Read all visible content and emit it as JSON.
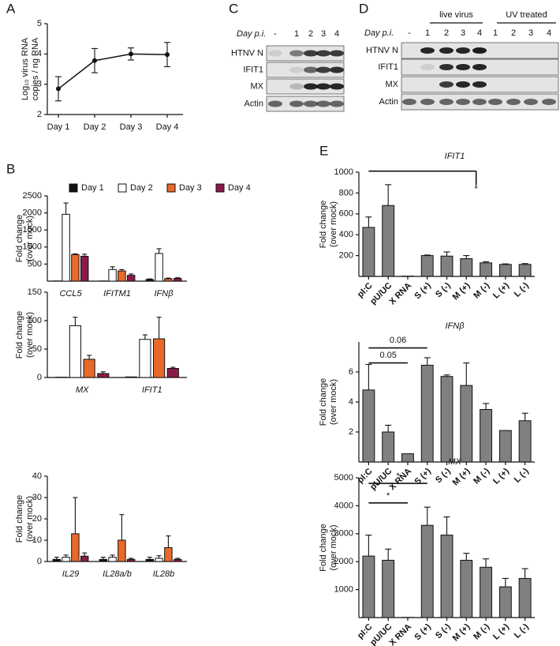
{
  "panel_labels": [
    "A",
    "B",
    "C",
    "D",
    "E"
  ],
  "blots": [
    {
      "label_day": "Day p.i.",
      "lanes": [
        "-",
        "1",
        "2",
        "3",
        "4"
      ],
      "rows": [
        "HTNV N",
        "IFIT1",
        "MX",
        "Actin"
      ]
    },
    {
      "label_day": "Day p.i.",
      "groups": [
        "live virus",
        "UV treated"
      ],
      "lanes": [
        "-",
        "1",
        "2",
        "3",
        "4",
        "1",
        "2",
        "3",
        "4"
      ],
      "rows": [
        "HTNV N",
        "IFIT1",
        "MX",
        "Actin"
      ]
    }
  ],
  "chart_data": [
    {
      "type": "line",
      "ylabel": [
        "Log₁₀ virus RNA",
        "copies / ng RNA"
      ],
      "categories": [
        "Day 1",
        "Day 2",
        "Day 3",
        "Day 4"
      ],
      "values": [
        2.85,
        3.78,
        4.0,
        3.98
      ],
      "errors": [
        0.4,
        0.4,
        0.2,
        0.4
      ],
      "color": "#111111",
      "ylim": [
        2,
        5
      ],
      "yticks": [
        2,
        3,
        4,
        5
      ]
    },
    {
      "type": "grouped-bar",
      "ylabel": [
        "Fold change",
        "(over mock)"
      ],
      "categories": [
        "CCL5",
        "IFITM1",
        "IFNβ"
      ],
      "series": [
        {
          "name": "Day 1",
          "color": "#111111",
          "values": [
            5,
            5,
            50
          ],
          "errors": [
            0,
            0,
            15
          ]
        },
        {
          "name": "Day 2",
          "color": "#ffffff",
          "values": [
            1960,
            340,
            810
          ],
          "errors": [
            330,
            80,
            140
          ]
        },
        {
          "name": "Day 3",
          "color": "#e8692a",
          "values": [
            780,
            300,
            70
          ],
          "errors": [
            20,
            40,
            20
          ]
        },
        {
          "name": "Day 4",
          "color": "#8b1a4a",
          "values": [
            730,
            170,
            80
          ],
          "errors": [
            60,
            40,
            20
          ]
        }
      ],
      "ylim": [
        0,
        2500
      ],
      "yticks": [
        500,
        1000,
        1500,
        2000,
        2500
      ]
    },
    {
      "type": "grouped-bar",
      "ylabel": [
        "Fold change",
        "(over mock)"
      ],
      "categories": [
        "MX",
        "IFIT1"
      ],
      "series": [
        {
          "color": "#111111",
          "values": [
            0.5,
            1
          ],
          "errors": [
            0,
            0
          ]
        },
        {
          "color": "#ffffff",
          "values": [
            91,
            67
          ],
          "errors": [
            15,
            8
          ]
        },
        {
          "color": "#e8692a",
          "values": [
            32,
            68
          ],
          "errors": [
            7,
            38
          ]
        },
        {
          "color": "#8b1a4a",
          "values": [
            7,
            16
          ],
          "errors": [
            3,
            2
          ]
        }
      ],
      "ylim": [
        0,
        150
      ],
      "yticks": [
        0,
        50,
        100,
        150
      ]
    },
    {
      "type": "grouped-bar",
      "ylabel": [
        "Fold change",
        "(over mock)"
      ],
      "categories": [
        "IL29",
        "IL28a/b",
        "IL28b"
      ],
      "series": [
        {
          "color": "#111111",
          "values": [
            1,
            1,
            1
          ],
          "errors": [
            1,
            1,
            1
          ]
        },
        {
          "color": "#ffffff",
          "values": [
            2,
            2,
            1.5
          ],
          "errors": [
            1,
            1,
            1.2
          ]
        },
        {
          "color": "#e8692a",
          "values": [
            13,
            10,
            6.5
          ],
          "errors": [
            17,
            12,
            5.5
          ]
        },
        {
          "color": "#8b1a4a",
          "values": [
            2.5,
            1,
            1
          ],
          "errors": [
            1.5,
            0.5,
            0.5
          ]
        }
      ],
      "ylim": [
        0,
        40
      ],
      "yticks": [
        0,
        10,
        20,
        30,
        40
      ]
    },
    {
      "type": "bar",
      "title": "IFIT1",
      "ylabel": [
        "Fold change",
        "(over mock)"
      ],
      "categories": [
        "pI:C",
        "pU/UC",
        "X RNA",
        "S (+)",
        "S (-)",
        "M (+)",
        "M (-)",
        "L (+)",
        "L (-)"
      ],
      "values": [
        470,
        680,
        3,
        200,
        195,
        170,
        130,
        115,
        115
      ],
      "errors": [
        100,
        200,
        0,
        5,
        40,
        30,
        10,
        5,
        8
      ],
      "color": "#808080",
      "ylim": [
        0,
        1000
      ],
      "yticks": [
        200,
        400,
        600,
        800,
        1000
      ],
      "annotations": [
        "*"
      ]
    },
    {
      "type": "bar",
      "title": "IFNβ",
      "ylabel": [
        "Fold change",
        "(over mock)"
      ],
      "categories": [
        "pI:C",
        "pU/UC",
        "X RNA",
        "S (+)",
        "S (-)",
        "M (+)",
        "M (-)",
        "L (+)",
        "L (-)"
      ],
      "values": [
        4.8,
        2.0,
        0.55,
        6.45,
        5.7,
        5.1,
        3.5,
        2.1,
        2.75
      ],
      "errors": [
        1.7,
        0.45,
        0,
        0.5,
        0.1,
        1.5,
        0.4,
        0,
        0.5
      ],
      "color": "#808080",
      "ylim": [
        0,
        8
      ],
      "yticks": [
        2,
        4,
        6
      ],
      "annotations": [
        "0.06",
        "0.05"
      ]
    },
    {
      "type": "bar",
      "title": "MX",
      "ylabel": [
        "Fold change",
        "(over mock)"
      ],
      "categories": [
        "pI:C",
        "pU/UC",
        "X RNA",
        "S (+)",
        "S (-)",
        "M (+)",
        "M (-)",
        "L (+)",
        "L (-)"
      ],
      "values": [
        2200,
        2050,
        5,
        3300,
        2950,
        2050,
        1800,
        1100,
        1400
      ],
      "errors": [
        750,
        400,
        0,
        650,
        650,
        250,
        300,
        300,
        350
      ],
      "color": "#808080",
      "ylim": [
        0,
        5000
      ],
      "yticks": [
        1000,
        2000,
        3000,
        4000,
        5000
      ],
      "annotations": [
        "*",
        "*"
      ]
    }
  ]
}
